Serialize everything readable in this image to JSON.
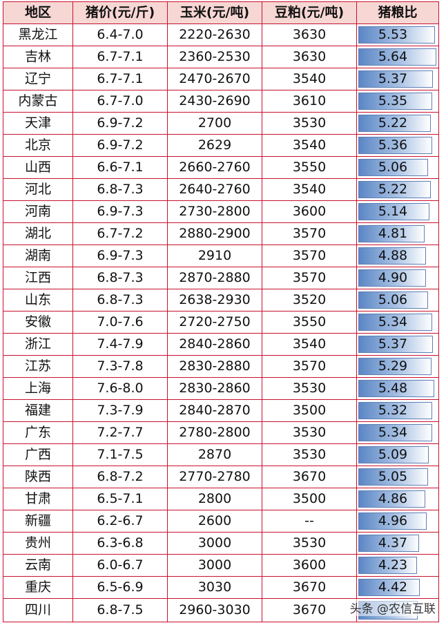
{
  "headers": [
    "地区",
    "猪价(元/斤)",
    "玉米(元/吨)",
    "豆粕(元/吨)",
    "猪粮比"
  ],
  "rows": [
    {
      "region": "黑龙江",
      "pig": "6.4-7.0",
      "corn": "2220-2630",
      "meal": "3630",
      "ratio": "5.53"
    },
    {
      "region": "吉林",
      "pig": "6.7-7.1",
      "corn": "2360-2530",
      "meal": "3630",
      "ratio": "5.64"
    },
    {
      "region": "辽宁",
      "pig": "6.7-7.1",
      "corn": "2470-2670",
      "meal": "3540",
      "ratio": "5.37"
    },
    {
      "region": "内蒙古",
      "pig": "6.7-7.0",
      "corn": "2430-2690",
      "meal": "3610",
      "ratio": "5.35"
    },
    {
      "region": "天津",
      "pig": "6.9-7.2",
      "corn": "2700",
      "meal": "3530",
      "ratio": "5.22"
    },
    {
      "region": "北京",
      "pig": "6.9-7.2",
      "corn": "2629",
      "meal": "3540",
      "ratio": "5.36"
    },
    {
      "region": "山西",
      "pig": "6.6-7.1",
      "corn": "2660-2760",
      "meal": "3550",
      "ratio": "5.06"
    },
    {
      "region": "河北",
      "pig": "6.8-7.3",
      "corn": "2640-2760",
      "meal": "3540",
      "ratio": "5.22"
    },
    {
      "region": "河南",
      "pig": "6.9-7.3",
      "corn": "2730-2800",
      "meal": "3600",
      "ratio": "5.14"
    },
    {
      "region": "湖北",
      "pig": "6.7-7.2",
      "corn": "2880-2900",
      "meal": "3570",
      "ratio": "4.81"
    },
    {
      "region": "湖南",
      "pig": "6.9-7.3",
      "corn": "2910",
      "meal": "3570",
      "ratio": "4.88"
    },
    {
      "region": "江西",
      "pig": "6.8-7.3",
      "corn": "2870-2880",
      "meal": "3570",
      "ratio": "4.90"
    },
    {
      "region": "山东",
      "pig": "6.8-7.3",
      "corn": "2638-2930",
      "meal": "3520",
      "ratio": "5.06"
    },
    {
      "region": "安徽",
      "pig": "7.0-7.6",
      "corn": "2720-2750",
      "meal": "3550",
      "ratio": "5.34"
    },
    {
      "region": "浙江",
      "pig": "7.4-7.9",
      "corn": "2840-2860",
      "meal": "3540",
      "ratio": "5.37"
    },
    {
      "region": "江苏",
      "pig": "7.3-7.8",
      "corn": "2830-2880",
      "meal": "3570",
      "ratio": "5.29"
    },
    {
      "region": "上海",
      "pig": "7.6-8.0",
      "corn": "2830-2860",
      "meal": "3530",
      "ratio": "5.48"
    },
    {
      "region": "福建",
      "pig": "7.3-7.9",
      "corn": "2840-2870",
      "meal": "3500",
      "ratio": "5.32"
    },
    {
      "region": "广东",
      "pig": "7.2-7.7",
      "corn": "2780-2800",
      "meal": "3530",
      "ratio": "5.34"
    },
    {
      "region": "广西",
      "pig": "7.1-7.5",
      "corn": "2870",
      "meal": "3530",
      "ratio": "5.09"
    },
    {
      "region": "陕西",
      "pig": "6.8-7.2",
      "corn": "2770-2780",
      "meal": "3670",
      "ratio": "5.05"
    },
    {
      "region": "甘肃",
      "pig": "6.5-7.1",
      "corn": "2800",
      "meal": "3500",
      "ratio": "4.86"
    },
    {
      "region": "新疆",
      "pig": "6.2-6.7",
      "corn": "2600",
      "meal": "--",
      "ratio": "4.96"
    },
    {
      "region": "贵州",
      "pig": "6.3-6.8",
      "corn": "3000",
      "meal": "3530",
      "ratio": "4.37"
    },
    {
      "region": "云南",
      "pig": "6.0-6.7",
      "corn": "3000",
      "meal": "3600",
      "ratio": "4.23"
    },
    {
      "region": "重庆",
      "pig": "6.5-6.9",
      "corn": "3030",
      "meal": "3670",
      "ratio": "4.42"
    },
    {
      "region": "四川",
      "pig": "6.8-7.5",
      "corn": "2960-3030",
      "meal": "3670",
      "ratio": ""
    }
  ],
  "bar_colors": {
    "dark": "#5b86c5",
    "light": "#ffffff",
    "border": "#5e7fb5"
  },
  "watermark": "头条 @农信互联"
}
